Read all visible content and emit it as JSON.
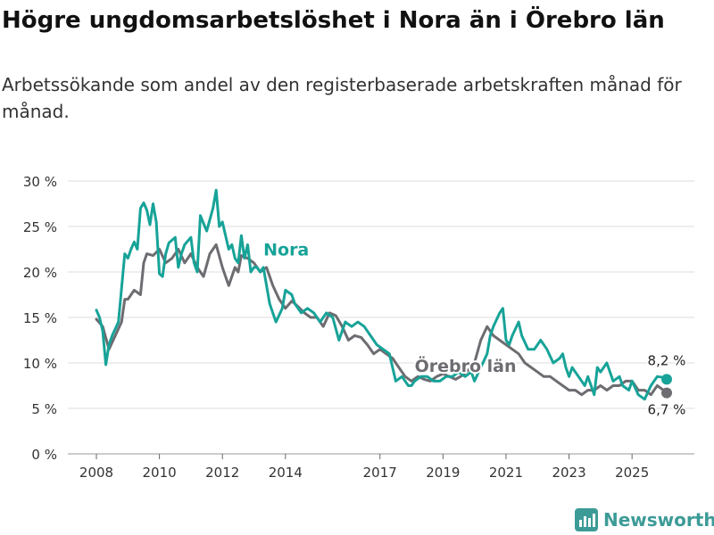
{
  "title": "Högre ungdomsarbetslöshet i Nora än i Örebro län",
  "subtitle": "Arbetssökande som andel av den registerbaserade arbetskraften månad för månad.",
  "brand": "Newsworthy",
  "colors": {
    "nora": "#17a398",
    "orebro": "#6d6c71",
    "grid": "#dedede",
    "axis": "#666666",
    "brand": "#3d9b97"
  },
  "chart_data": {
    "type": "line",
    "title": "Högre ungdomsarbetslöshet i Nora än i Örebro län",
    "xlabel": "",
    "ylabel": "",
    "ylim": [
      0,
      30
    ],
    "xlim": [
      2007.6,
      2026.6
    ],
    "y_ticks": [
      0,
      5,
      10,
      15,
      20,
      25,
      30
    ],
    "y_tick_labels": [
      "0 %",
      "5 %",
      "10 %",
      "15 %",
      "20 %",
      "25 %",
      "30 %"
    ],
    "x_ticks": [
      2008,
      2010,
      2012,
      2014,
      2017,
      2019,
      2021,
      2023,
      2025
    ],
    "x_tick_labels": [
      "2008",
      "2010",
      "2012",
      "2014",
      "2017",
      "2019",
      "2021",
      "2023",
      "2025"
    ],
    "grid": true,
    "series": [
      {
        "name": "Nora",
        "label": "Nora",
        "end_label": "8,2 %",
        "x": [
          2008.0,
          2008.1,
          2008.2,
          2008.3,
          2008.4,
          2008.5,
          2008.7,
          2008.9,
          2009.0,
          2009.1,
          2009.2,
          2009.3,
          2009.4,
          2009.5,
          2009.6,
          2009.7,
          2009.8,
          2009.9,
          2010.0,
          2010.1,
          2010.2,
          2010.3,
          2010.5,
          2010.6,
          2010.7,
          2010.8,
          2011.0,
          2011.1,
          2011.2,
          2011.3,
          2011.5,
          2011.7,
          2011.8,
          2011.9,
          2012.0,
          2012.1,
          2012.2,
          2012.3,
          2012.4,
          2012.5,
          2012.6,
          2012.7,
          2012.8,
          2012.9,
          2013.0,
          2013.1,
          2013.2,
          2013.3,
          2013.5,
          2013.7,
          2013.9,
          2014.0,
          2014.2,
          2014.3,
          2014.5,
          2014.7,
          2014.9,
          2015.1,
          2015.3,
          2015.5,
          2015.7,
          2015.9,
          2016.1,
          2016.3,
          2016.5,
          2016.7,
          2016.9,
          2017.1,
          2017.3,
          2017.5,
          2017.7,
          2017.9,
          2018.0,
          2018.1,
          2018.3,
          2018.5,
          2018.7,
          2018.9,
          2019.1,
          2019.3,
          2019.5,
          2019.7,
          2019.9,
          2020.0,
          2020.2,
          2020.4,
          2020.5,
          2020.6,
          2020.8,
          2020.9,
          2021.0,
          2021.1,
          2021.2,
          2021.4,
          2021.5,
          2021.7,
          2021.9,
          2022.1,
          2022.3,
          2022.5,
          2022.7,
          2022.8,
          2022.9,
          2023.0,
          2023.1,
          2023.2,
          2023.4,
          2023.5,
          2023.6,
          2023.8,
          2023.9,
          2024.0,
          2024.2,
          2024.4,
          2024.6,
          2024.7,
          2024.9,
          2025.0,
          2025.2,
          2025.4,
          2025.6,
          2025.8,
          2026.0,
          2026.1
        ],
        "values": [
          15.8,
          15.0,
          13.5,
          9.8,
          12.0,
          13.0,
          14.5,
          22.0,
          21.5,
          22.5,
          23.3,
          22.5,
          27.0,
          27.6,
          26.8,
          25.2,
          27.5,
          25.5,
          19.8,
          19.5,
          22.0,
          23.2,
          23.8,
          20.5,
          22.0,
          23.0,
          23.8,
          21.0,
          20.0,
          26.2,
          24.5,
          27.0,
          29.0,
          25.0,
          25.5,
          24.0,
          22.5,
          23.0,
          21.5,
          21.0,
          24.0,
          21.5,
          23.0,
          20.0,
          20.5,
          20.5,
          20.0,
          20.5,
          16.5,
          14.5,
          16.0,
          18.0,
          17.5,
          16.5,
          15.5,
          16.0,
          15.5,
          14.5,
          15.5,
          15.0,
          12.5,
          14.5,
          14.0,
          14.5,
          14.0,
          13.0,
          12.0,
          11.5,
          11.0,
          8.0,
          8.5,
          7.5,
          7.5,
          8.0,
          8.5,
          8.5,
          8.0,
          8.0,
          8.5,
          8.5,
          9.0,
          8.5,
          9.0,
          8.0,
          9.5,
          11.0,
          13.0,
          14.0,
          15.5,
          16.0,
          12.5,
          12.0,
          13.0,
          14.5,
          13.0,
          11.5,
          11.5,
          12.5,
          11.5,
          10.0,
          10.5,
          11.0,
          9.5,
          8.5,
          9.5,
          9.0,
          8.0,
          7.5,
          8.5,
          6.5,
          9.5,
          9.0,
          10.0,
          8.0,
          8.5,
          7.5,
          7.0,
          8.0,
          6.5,
          6.0,
          7.5,
          8.5,
          8.4,
          8.2
        ]
      },
      {
        "name": "Örebro län",
        "label": "Örebro län",
        "end_label": "6,7 %",
        "x": [
          2008.0,
          2008.2,
          2008.4,
          2008.6,
          2008.8,
          2008.9,
          2009.0,
          2009.2,
          2009.4,
          2009.5,
          2009.6,
          2009.8,
          2010.0,
          2010.2,
          2010.4,
          2010.6,
          2010.8,
          2011.0,
          2011.2,
          2011.4,
          2011.6,
          2011.8,
          2012.0,
          2012.1,
          2012.2,
          2012.4,
          2012.5,
          2012.6,
          2012.8,
          2013.0,
          2013.1,
          2013.2,
          2013.4,
          2013.6,
          2013.8,
          2014.0,
          2014.2,
          2014.4,
          2014.6,
          2014.8,
          2015.0,
          2015.2,
          2015.4,
          2015.6,
          2015.8,
          2016.0,
          2016.2,
          2016.4,
          2016.6,
          2016.8,
          2017.0,
          2017.2,
          2017.4,
          2017.6,
          2017.8,
          2018.0,
          2018.2,
          2018.4,
          2018.6,
          2018.8,
          2019.0,
          2019.2,
          2019.4,
          2019.6,
          2019.8,
          2020.0,
          2020.2,
          2020.4,
          2020.5,
          2020.6,
          2020.8,
          2021.0,
          2021.2,
          2021.4,
          2021.6,
          2021.8,
          2022.0,
          2022.2,
          2022.4,
          2022.6,
          2022.8,
          2023.0,
          2023.2,
          2023.4,
          2023.6,
          2023.8,
          2024.0,
          2024.2,
          2024.4,
          2024.6,
          2024.8,
          2025.0,
          2025.2,
          2025.4,
          2025.6,
          2025.8,
          2026.0,
          2026.1
        ],
        "values": [
          14.8,
          14.0,
          11.5,
          13.0,
          14.5,
          17.0,
          17.0,
          18.0,
          17.5,
          21.0,
          22.0,
          21.8,
          22.5,
          21.0,
          21.5,
          22.5,
          21.0,
          22.0,
          20.5,
          19.5,
          22.0,
          23.0,
          20.5,
          19.5,
          18.5,
          20.5,
          20.0,
          21.8,
          21.5,
          21.0,
          20.5,
          20.0,
          20.5,
          18.5,
          17.0,
          16.0,
          16.8,
          16.2,
          15.5,
          15.0,
          15.0,
          14.0,
          15.5,
          15.2,
          14.0,
          12.5,
          13.0,
          12.8,
          12.0,
          11.0,
          11.5,
          11.0,
          10.5,
          9.5,
          8.5,
          8.0,
          8.5,
          8.2,
          8.0,
          8.5,
          8.8,
          8.5,
          8.2,
          8.6,
          9.2,
          10.0,
          12.5,
          14.0,
          13.5,
          13.0,
          12.5,
          12.0,
          11.5,
          11.0,
          10.0,
          9.5,
          9.0,
          8.5,
          8.5,
          8.0,
          7.5,
          7.0,
          7.0,
          6.5,
          7.0,
          7.0,
          7.5,
          7.0,
          7.5,
          7.5,
          8.0,
          8.0,
          7.0,
          7.0,
          6.5,
          7.5,
          7.0,
          6.7
        ]
      }
    ]
  }
}
